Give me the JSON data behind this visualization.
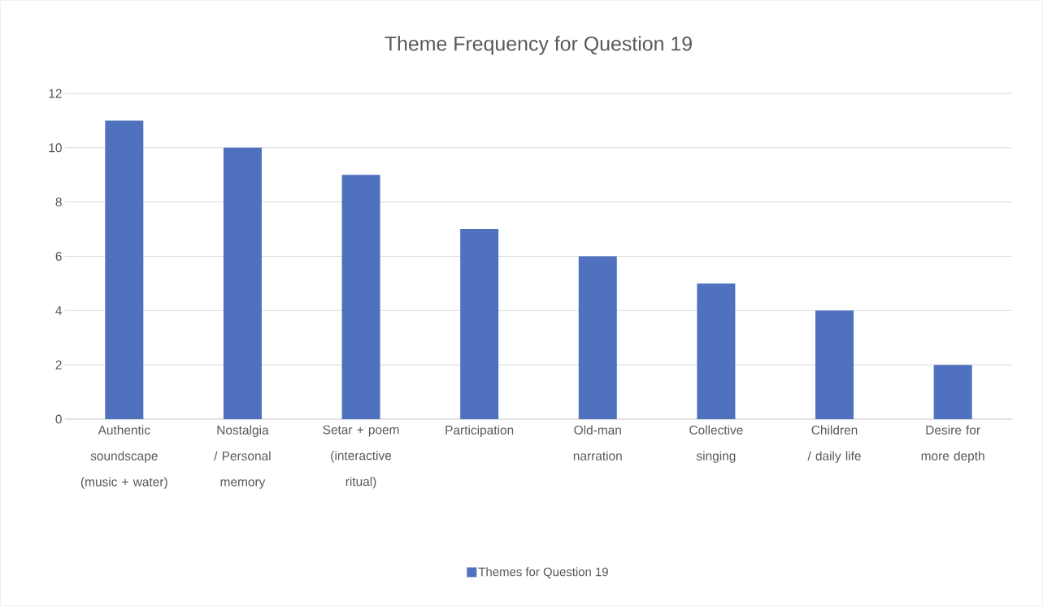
{
  "chart_data": {
    "type": "bar",
    "title": "Theme Frequency for Question 19",
    "categories": [
      "Authentic soundscape (music + water)",
      "Nostalgia / Personal memory",
      "Setar + poem (interactive ritual)",
      "Participation",
      "Old-man narration",
      "Collective singing",
      "Children / daily life",
      "Desire for more depth"
    ],
    "series": [
      {
        "name": "Themes for Question 19",
        "color": "#4f71be",
        "values": [
          11,
          10,
          9,
          7,
          6,
          5,
          4,
          2
        ]
      }
    ],
    "ylim": [
      0,
      12
    ],
    "yticks": [
      0,
      2,
      4,
      6,
      8,
      10,
      12
    ],
    "grid": "y",
    "legend": "bottom"
  }
}
